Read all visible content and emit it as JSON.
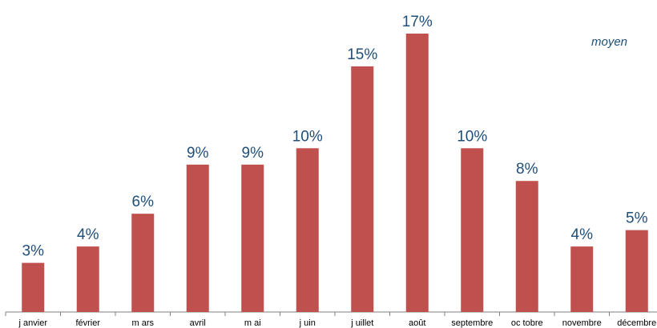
{
  "chart_data": {
    "type": "bar",
    "categories": [
      "j anvier",
      "février",
      "m ars",
      "avril",
      "m ai",
      "j uin",
      "j uillet",
      "août",
      "septembre",
      "oc tobre",
      "novembre",
      "décembre"
    ],
    "values": [
      3,
      4,
      6,
      9,
      9,
      10,
      15,
      17,
      10,
      8,
      4,
      5
    ],
    "data_labels": [
      "3%",
      "4%",
      "6%",
      "9%",
      "9%",
      "10%",
      "15%",
      "17%",
      "10%",
      "8%",
      "4%",
      "5%"
    ],
    "annotation": "moyen",
    "ylim": [
      0,
      17
    ],
    "grid": false,
    "colors": {
      "bar": "#c0504d",
      "label": "#1f4e79",
      "axis": "#808080",
      "tick_text": "#000000"
    }
  }
}
